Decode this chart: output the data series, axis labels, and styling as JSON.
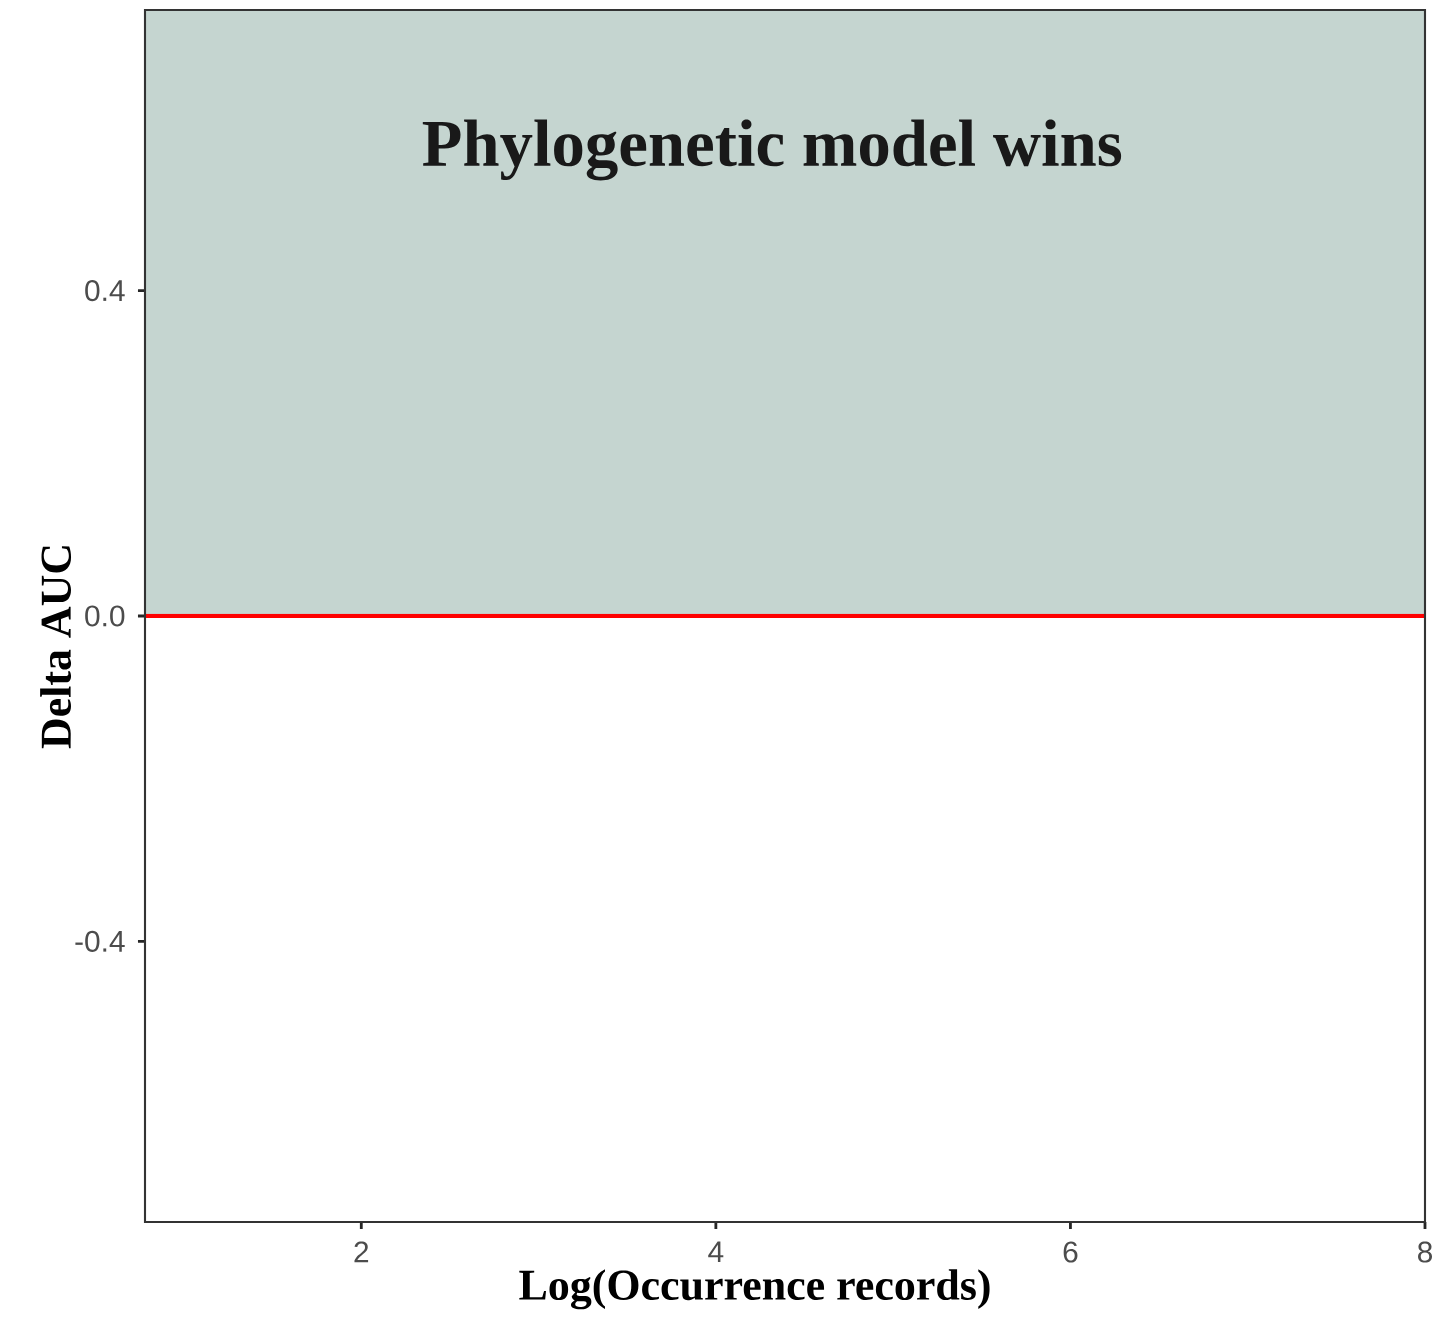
{
  "chart_data": {
    "type": "line",
    "xlabel": "Log(Occurrence records)",
    "ylabel": "Delta AUC",
    "xlim": [
      0.78,
      8
    ],
    "ylim": [
      -0.745,
      0.745
    ],
    "xticks": [
      2,
      4,
      6,
      8
    ],
    "yticks": [
      -0.4,
      {
        "value": 0,
        "label": "0.0"
      },
      0.4
    ],
    "bands": [
      {
        "axis": "y",
        "from": 0,
        "to": 0.745,
        "label": "Phylogenetic model wins",
        "color": "#c5d5d0"
      }
    ],
    "ref_lines": [
      {
        "axis": "y",
        "value": 0,
        "color": "#ff0000"
      }
    ]
  }
}
